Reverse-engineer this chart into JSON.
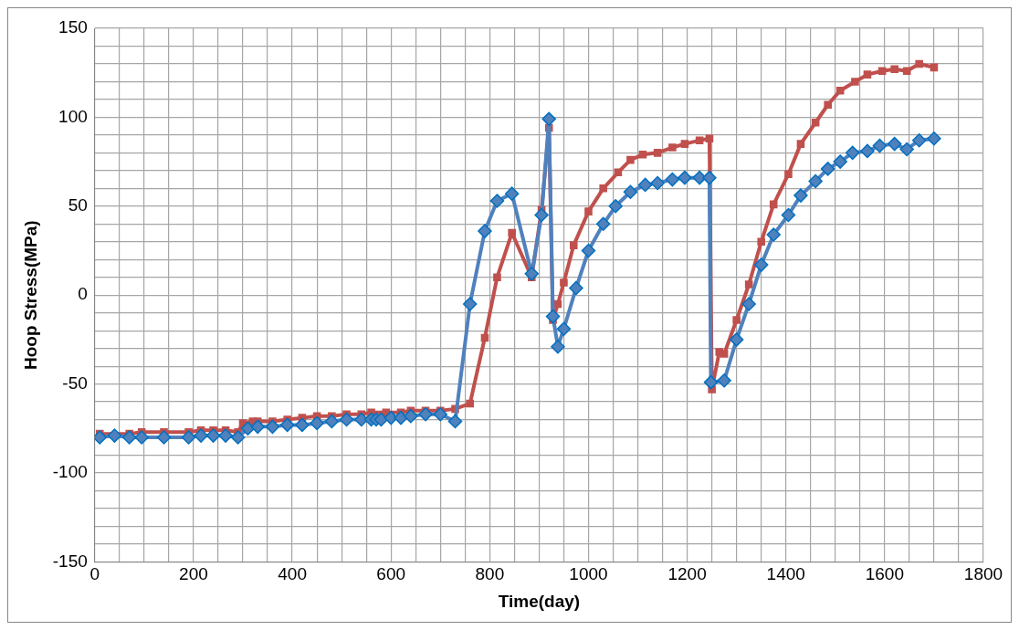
{
  "chart_data": {
    "type": "line",
    "xlabel": "Time(day)",
    "ylabel": "Hoop Stress(MPa)",
    "xlim": [
      0,
      1800
    ],
    "ylim": [
      -150,
      150
    ],
    "xticks": [
      0,
      {
        "value": 50,
        "label": null
      },
      {
        "value": 100,
        "label": null
      },
      {
        "value": 150,
        "label": null
      },
      200,
      {
        "value": 250,
        "label": null
      },
      {
        "value": 300,
        "label": null
      },
      {
        "value": 350,
        "label": null
      },
      400,
      {
        "value": 450,
        "label": null
      },
      {
        "value": 500,
        "label": null
      },
      {
        "value": 550,
        "label": null
      },
      600,
      {
        "value": 650,
        "label": null
      },
      {
        "value": 700,
        "label": null
      },
      {
        "value": 750,
        "label": null
      },
      800,
      {
        "value": 850,
        "label": null
      },
      {
        "value": 900,
        "label": null
      },
      {
        "value": 950,
        "label": null
      },
      1000,
      {
        "value": 1050,
        "label": null
      },
      {
        "value": 1100,
        "label": null
      },
      {
        "value": 1150,
        "label": null
      },
      1200,
      {
        "value": 1250,
        "label": null
      },
      {
        "value": 1300,
        "label": null
      },
      {
        "value": 1350,
        "label": null
      },
      1400,
      {
        "value": 1450,
        "label": null
      },
      {
        "value": 1500,
        "label": null
      },
      {
        "value": 1550,
        "label": null
      },
      1600,
      {
        "value": 1650,
        "label": null
      },
      {
        "value": 1700,
        "label": null
      },
      {
        "value": 1750,
        "label": null
      },
      1800
    ],
    "yticks": [
      -150,
      {
        "value": -140,
        "label": null
      },
      {
        "value": -130,
        "label": null
      },
      {
        "value": -120,
        "label": null
      },
      {
        "value": -110,
        "label": null
      },
      -100,
      {
        "value": -90,
        "label": null
      },
      {
        "value": -80,
        "label": null
      },
      {
        "value": -70,
        "label": null
      },
      {
        "value": -60,
        "label": null
      },
      -50,
      {
        "value": -40,
        "label": null
      },
      {
        "value": -30,
        "label": null
      },
      {
        "value": -20,
        "label": null
      },
      {
        "value": -10,
        "label": null
      },
      0,
      {
        "value": 10,
        "label": null
      },
      {
        "value": 20,
        "label": null
      },
      {
        "value": 30,
        "label": null
      },
      {
        "value": 40,
        "label": null
      },
      50,
      {
        "value": 60,
        "label": null
      },
      {
        "value": 70,
        "label": null
      },
      {
        "value": 80,
        "label": null
      },
      {
        "value": 90,
        "label": null
      },
      100,
      {
        "value": 110,
        "label": null
      },
      {
        "value": 120,
        "label": null
      },
      {
        "value": 130,
        "label": null
      },
      {
        "value": 140,
        "label": null
      },
      150
    ],
    "grid": true,
    "line_style": "solid",
    "series": [
      {
        "color": "#4f81bd",
        "marker": "diamond",
        "x": [
          10,
          40,
          70,
          95,
          140,
          190,
          215,
          240,
          265,
          290,
          310,
          330,
          360,
          390,
          420,
          450,
          480,
          510,
          540,
          560,
          570,
          580,
          600,
          620,
          640,
          670,
          700,
          730,
          760,
          790,
          815,
          845,
          885,
          905,
          920,
          928,
          938,
          950,
          975,
          1000,
          1030,
          1055,
          1085,
          1115,
          1140,
          1170,
          1195,
          1225,
          1245,
          1248,
          1275,
          1300,
          1325,
          1350,
          1375,
          1405,
          1430,
          1460,
          1485,
          1510,
          1535,
          1565,
          1590,
          1620,
          1645,
          1670,
          1700
        ],
        "values": [
          -80,
          -79,
          -80,
          -80,
          -80,
          -80,
          -79,
          -79,
          -79,
          -80,
          -75,
          -74,
          -74,
          -73,
          -73,
          -72,
          -71,
          -70,
          -70,
          -70,
          -70,
          -70,
          -69,
          -69,
          -68,
          -67,
          -67,
          -71,
          -5,
          36,
          53,
          57,
          12,
          45,
          99,
          -12,
          -29,
          -19,
          4,
          25,
          40,
          50,
          58,
          62,
          63,
          65,
          66,
          66,
          66,
          -49,
          -48,
          -25,
          -5,
          17,
          34,
          45,
          56,
          64,
          71,
          75,
          80,
          81,
          84,
          85,
          82,
          87,
          88
        ]
      },
      {
        "color": "#c0504d",
        "marker": "square",
        "x": [
          10,
          70,
          95,
          140,
          190,
          215,
          240,
          265,
          290,
          300,
          320,
          330,
          360,
          390,
          420,
          450,
          480,
          510,
          540,
          560,
          590,
          620,
          640,
          670,
          700,
          730,
          760,
          790,
          815,
          845,
          885,
          905,
          920,
          928,
          938,
          950,
          970,
          1000,
          1030,
          1060,
          1085,
          1110,
          1140,
          1170,
          1195,
          1225,
          1245,
          1250,
          1265,
          1275,
          1300,
          1325,
          1350,
          1375,
          1405,
          1430,
          1460,
          1485,
          1510,
          1540,
          1565,
          1595,
          1620,
          1645,
          1670,
          1700
        ],
        "values": [
          -78,
          -78,
          -77,
          -77,
          -77,
          -76,
          -76,
          -76,
          -77,
          -72,
          -71,
          -71,
          -71,
          -70,
          -69,
          -68,
          -68,
          -67,
          -67,
          -66,
          -66,
          -66,
          -65,
          -65,
          -65,
          -64,
          -61,
          -24,
          10,
          35,
          10,
          48,
          94,
          -14,
          -5,
          7,
          28,
          47,
          60,
          69,
          76,
          79,
          80,
          83,
          85,
          87,
          88,
          -53,
          -32,
          -33,
          -14,
          6,
          30,
          51,
          68,
          85,
          97,
          107,
          115,
          120,
          124,
          126,
          127,
          126,
          130,
          128
        ]
      }
    ]
  }
}
